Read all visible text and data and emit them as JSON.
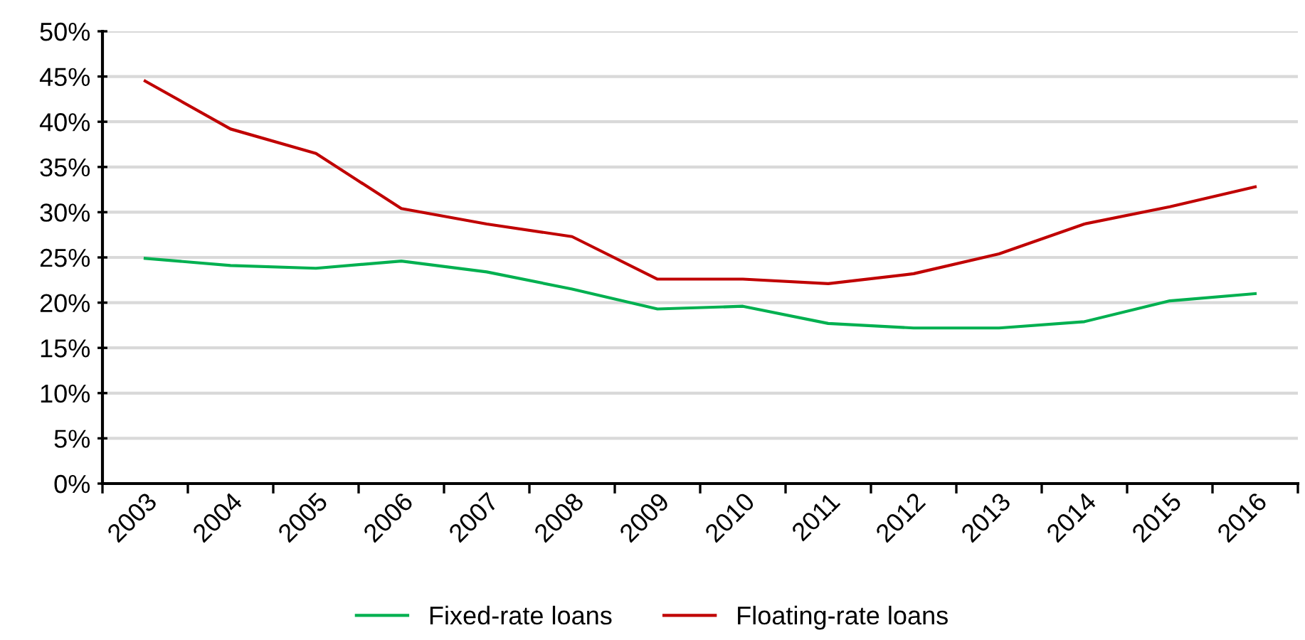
{
  "chart_data": {
    "type": "line",
    "categories": [
      "2003",
      "2004",
      "2005",
      "2006",
      "2007",
      "2008",
      "2009",
      "2010",
      "2011",
      "2012",
      "2013",
      "2014",
      "2015",
      "2016"
    ],
    "series": [
      {
        "name": "Fixed-rate loans",
        "color": "#00b050",
        "values": [
          24.9,
          24.1,
          23.8,
          24.6,
          23.4,
          21.5,
          19.3,
          19.6,
          17.7,
          17.2,
          17.2,
          17.9,
          20.2,
          21.0
        ]
      },
      {
        "name": "Floating-rate loans",
        "color": "#c00000",
        "values": [
          44.5,
          39.2,
          36.5,
          30.4,
          28.7,
          27.3,
          22.6,
          22.6,
          22.1,
          23.2,
          25.4,
          28.7,
          30.6,
          32.8
        ]
      }
    ],
    "ylim": [
      0,
      50
    ],
    "yticks": [
      {
        "value": 0,
        "label": "0%"
      },
      {
        "value": 5,
        "label": "5%"
      },
      {
        "value": 10,
        "label": "10%"
      },
      {
        "value": 15,
        "label": "15%"
      },
      {
        "value": 20,
        "label": "20%"
      },
      {
        "value": 25,
        "label": "25%"
      },
      {
        "value": 30,
        "label": "30%"
      },
      {
        "value": 35,
        "label": "35%"
      },
      {
        "value": 40,
        "label": "40%"
      },
      {
        "value": 45,
        "label": "45%"
      },
      {
        "value": 50,
        "label": "50%"
      }
    ],
    "grid": "y",
    "legend": "bottom",
    "marker": "none",
    "line_style": "solid"
  }
}
